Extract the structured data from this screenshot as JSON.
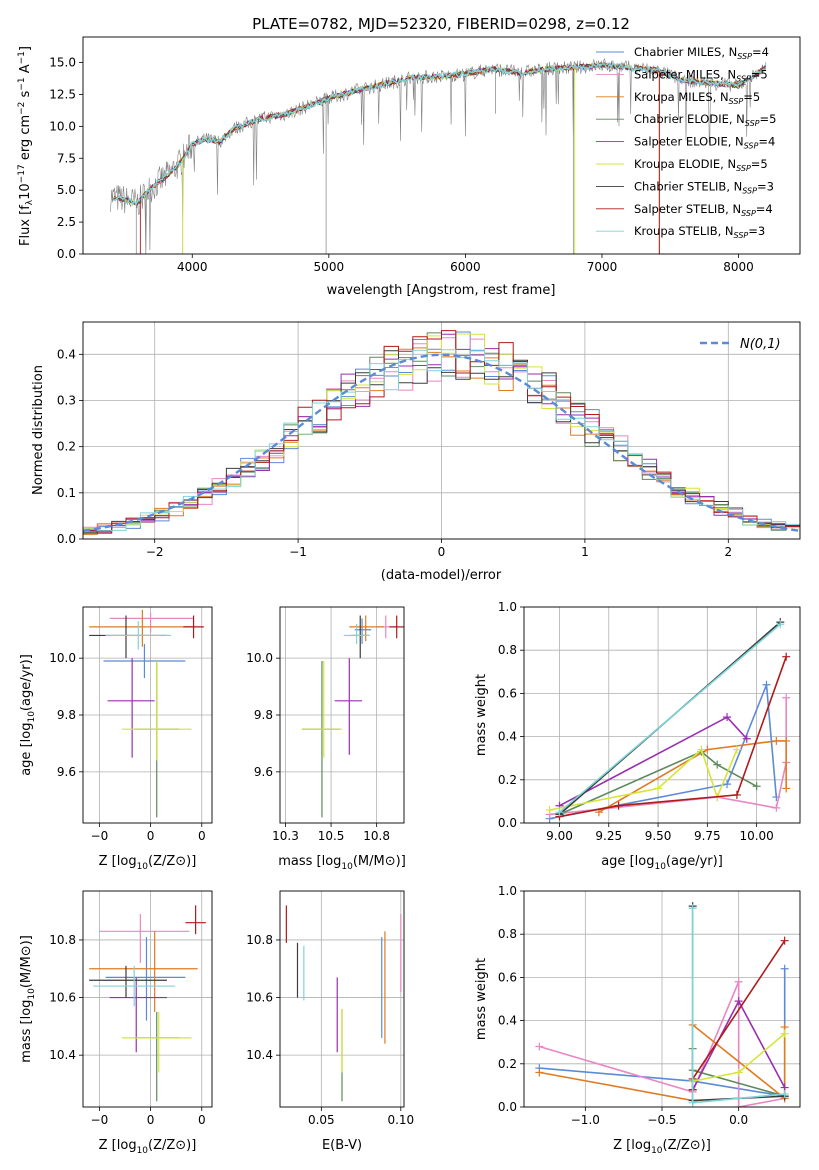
{
  "figure_title": "PLATE=0782, MJD=52320, FIBERID=0298, z=0.12",
  "colors": {
    "Chabrier MILES": "#5b8bd8",
    "Salpeter MILES": "#e887c4",
    "Kroupa MILES": "#e07b22",
    "Chabrier ELODIE": "#5e8a5e",
    "Salpeter ELODIE": "#9a2eb0",
    "Kroupa ELODIE": "#d4e63a",
    "Chabrier STELIB": "#3c3c3c",
    "Salpeter STELIB": "#b01a1a",
    "Kroupa STELIB": "#7dd4d8",
    "normal_curve": "#5b8bd8",
    "grid": "#b0b0b0"
  },
  "chart_data": [
    {
      "id": "spectrum",
      "type": "line",
      "title": "PLATE=0782, MJD=52320, FIBERID=0298, z=0.12",
      "xlabel": "wavelength [Angstrom, rest frame]",
      "ylabel": "Flux [f_λ10^-17 erg cm^-2 s^-1 A^-1]",
      "xlim": [
        3200,
        8450
      ],
      "ylim": [
        0,
        17
      ],
      "grid": false,
      "legend_position": "right",
      "xticks": [
        4000,
        5000,
        6000,
        7000,
        8000
      ],
      "yticks": [
        0.0,
        2.5,
        5.0,
        7.5,
        10.0,
        12.5,
        15.0
      ],
      "data_curve_shape": {
        "x": [
          3400,
          3600,
          3700,
          3800,
          3900,
          4000,
          4100,
          4200,
          4300,
          4400,
          4500,
          4600,
          4700,
          4800,
          5000,
          5200,
          5400,
          5600,
          5800,
          6000,
          6200,
          6400,
          6600,
          6800,
          7000,
          7200,
          7400,
          7600,
          7800,
          8000,
          8200
        ],
        "y": [
          4.5,
          4.0,
          5.2,
          6.0,
          7.0,
          8.6,
          9.0,
          8.8,
          9.8,
          10.2,
          10.6,
          10.8,
          11.0,
          11.4,
          12.2,
          12.8,
          13.3,
          13.8,
          13.9,
          14.1,
          14.5,
          14.2,
          14.5,
          14.6,
          14.8,
          14.6,
          14.4,
          13.6,
          13.4,
          13.2,
          14.6
        ]
      },
      "series": [
        {
          "name": "Chabrier MILES, N_SSP=4"
        },
        {
          "name": "Salpeter MILES, N_SSP=5"
        },
        {
          "name": "Kroupa MILES, N_SSP=5"
        },
        {
          "name": "Chabrier ELODIE, N_SSP=5"
        },
        {
          "name": "Salpeter ELODIE, N_SSP=4"
        },
        {
          "name": "Kroupa ELODIE, N_SSP=5"
        },
        {
          "name": "Chabrier STELIB, N_SSP=3"
        },
        {
          "name": "Salpeter STELIB, N_SSP=4"
        },
        {
          "name": "Kroupa STELIB, N_SSP=3"
        }
      ]
    },
    {
      "id": "residuals",
      "type": "histogram",
      "xlabel": "(data-model)/error",
      "ylabel": "Normed distribution",
      "xlim": [
        -2.5,
        2.5
      ],
      "ylim": [
        0,
        0.47
      ],
      "grid": true,
      "legend_position": "top-right",
      "xticks": [
        -2,
        -1,
        0,
        1,
        2
      ],
      "yticks": [
        0.0,
        0.1,
        0.2,
        0.3,
        0.4
      ],
      "bin_width": 0.1,
      "curve_label": "N(0,1)",
      "curve_mu": 0,
      "curve_sigma": 1
    },
    {
      "id": "age_vs_Z",
      "type": "scatter",
      "xlabel": "Z [log10(Z/Z⊙)]",
      "ylabel": "age [log10(age/yr)]",
      "xlim": [
        -0.33,
        0.3
      ],
      "ylim": [
        9.42,
        10.18
      ],
      "grid": true,
      "xticks": [
        -0.25,
        0.0,
        0.25
      ],
      "yticks": [
        9.6,
        9.8,
        10.0
      ],
      "points": [
        {
          "s": "Chabrier MILES",
          "x": -0.03,
          "y": 9.99,
          "xlo": -0.23,
          "xhi": 0.17,
          "ylo": 9.93,
          "yhi": 10.05
        },
        {
          "s": "Salpeter MILES",
          "x": 0.0,
          "y": 10.14,
          "xlo": -0.2,
          "xhi": 0.21,
          "ylo": 10.09,
          "yhi": 10.16
        },
        {
          "s": "Kroupa MILES",
          "x": -0.04,
          "y": 10.11,
          "xlo": -0.3,
          "xhi": 0.21,
          "ylo": 10.04,
          "yhi": 10.17
        },
        {
          "s": "Chabrier ELODIE",
          "x": 0.03,
          "y": 9.75,
          "xlo": -0.08,
          "xhi": 0.14,
          "ylo": 9.44,
          "yhi": 9.99
        },
        {
          "s": "Salpeter ELODIE",
          "x": -0.09,
          "y": 9.85,
          "xlo": -0.21,
          "xhi": 0.02,
          "ylo": 9.65,
          "yhi": 10.0
        },
        {
          "s": "Kroupa ELODIE",
          "x": 0.03,
          "y": 9.75,
          "xlo": -0.14,
          "xhi": 0.2,
          "ylo": 9.64,
          "yhi": 9.99
        },
        {
          "s": "Chabrier STELIB",
          "x": -0.12,
          "y": 10.08,
          "xlo": -0.3,
          "xhi": 0.08,
          "ylo": 10.0,
          "yhi": 10.15
        },
        {
          "s": "Salpeter STELIB",
          "x": 0.21,
          "y": 10.11,
          "xlo": 0.16,
          "xhi": 0.26,
          "ylo": 10.07,
          "yhi": 10.15
        },
        {
          "s": "Kroupa STELIB",
          "x": -0.06,
          "y": 10.08,
          "xlo": -0.22,
          "xhi": 0.1,
          "ylo": 10.03,
          "yhi": 10.13
        }
      ]
    },
    {
      "id": "age_vs_mass",
      "type": "scatter",
      "xlabel": "mass [log10(M/M⊙)]",
      "ylabel": "",
      "xlim": [
        10.22,
        10.9
      ],
      "ylim": [
        9.42,
        10.18
      ],
      "grid": true,
      "xticks": [
        10.25,
        10.5,
        10.75
      ],
      "yticks": [
        9.6,
        9.8,
        10.0
      ],
      "points": [
        {
          "s": "Chabrier MILES",
          "x": 10.67,
          "y": 10.1,
          "xlo": 10.63,
          "xhi": 10.72,
          "ylo": 10.05,
          "yhi": 10.14
        },
        {
          "s": "Salpeter MILES",
          "x": 10.8,
          "y": 10.11,
          "xlo": 10.75,
          "xhi": 10.86,
          "ylo": 10.07,
          "yhi": 10.15
        },
        {
          "s": "Kroupa MILES",
          "x": 10.69,
          "y": 10.11,
          "xlo": 10.6,
          "xhi": 10.79,
          "ylo": 10.06,
          "yhi": 10.15
        },
        {
          "s": "Chabrier ELODIE",
          "x": 10.45,
          "y": 9.75,
          "xlo": 10.34,
          "xhi": 10.55,
          "ylo": 9.44,
          "yhi": 9.99
        },
        {
          "s": "Salpeter ELODIE",
          "x": 10.6,
          "y": 9.85,
          "xlo": 10.52,
          "xhi": 10.67,
          "ylo": 9.66,
          "yhi": 10.0
        },
        {
          "s": "Kroupa ELODIE",
          "x": 10.46,
          "y": 9.75,
          "xlo": 10.34,
          "xhi": 10.56,
          "ylo": 9.65,
          "yhi": 9.99
        },
        {
          "s": "Chabrier STELIB",
          "x": 10.66,
          "y": 10.08,
          "xlo": 10.61,
          "xhi": 10.71,
          "ylo": 10.0,
          "yhi": 10.15
        },
        {
          "s": "Salpeter STELIB",
          "x": 10.86,
          "y": 10.11,
          "xlo": 10.82,
          "xhi": 10.9,
          "ylo": 10.07,
          "yhi": 10.15
        },
        {
          "s": "Kroupa STELIB",
          "x": 10.64,
          "y": 10.08,
          "xlo": 10.57,
          "xhi": 10.71,
          "ylo": 10.05,
          "yhi": 10.12
        }
      ]
    },
    {
      "id": "weight_vs_age",
      "type": "line",
      "xlabel": "age [log10(age/yr)]",
      "ylabel": "mass weight",
      "xlim": [
        8.82,
        10.22
      ],
      "ylim": [
        0.0,
        1.0
      ],
      "grid": true,
      "xticks": [
        9.0,
        9.25,
        9.5,
        9.75,
        10.0
      ],
      "yticks": [
        0.0,
        0.2,
        0.4,
        0.6,
        0.8,
        1.0
      ],
      "series": [
        {
          "s": "Chabrier MILES",
          "x": [
            8.95,
            9.85,
            10.05,
            10.1
          ],
          "y": [
            0.02,
            0.18,
            0.64,
            0.12
          ]
        },
        {
          "s": "Salpeter MILES",
          "x": [
            8.95,
            9.8,
            10.1,
            10.15,
            10.15
          ],
          "y": [
            0.04,
            0.12,
            0.07,
            0.28,
            0.58
          ]
        },
        {
          "s": "Kroupa MILES",
          "x": [
            9.2,
            9.75,
            10.1,
            10.15,
            10.15
          ],
          "y": [
            0.05,
            0.34,
            0.38,
            0.38,
            0.16
          ]
        },
        {
          "s": "Chabrier ELODIE",
          "x": [
            9.0,
            9.72,
            9.8,
            10.0
          ],
          "y": [
            0.04,
            0.33,
            0.27,
            0.17
          ]
        },
        {
          "s": "Salpeter ELODIE",
          "x": [
            9.0,
            9.85,
            9.95
          ],
          "y": [
            0.08,
            0.49,
            0.39
          ]
        },
        {
          "s": "Kroupa ELODIE",
          "x": [
            8.95,
            9.5,
            9.72,
            9.8,
            9.9
          ],
          "y": [
            0.06,
            0.16,
            0.34,
            0.12,
            0.34
          ]
        },
        {
          "s": "Chabrier STELIB",
          "x": [
            9.0,
            10.12
          ],
          "y": [
            0.04,
            0.93
          ]
        },
        {
          "s": "Salpeter STELIB",
          "x": [
            9.0,
            9.3,
            9.9,
            10.15
          ],
          "y": [
            0.03,
            0.08,
            0.13,
            0.77
          ]
        },
        {
          "s": "Kroupa STELIB",
          "x": [
            9.0,
            10.12
          ],
          "y": [
            0.05,
            0.92
          ]
        }
      ]
    },
    {
      "id": "mass_vs_Z",
      "type": "scatter",
      "xlabel": "Z [log10(Z/Z⊙)]",
      "ylabel": "mass [log10(M/M⊙)]",
      "xlim": [
        -0.33,
        0.3
      ],
      "ylim": [
        10.22,
        10.97
      ],
      "grid": true,
      "xticks": [
        -0.25,
        0.0,
        0.25
      ],
      "yticks": [
        10.4,
        10.6,
        10.8
      ],
      "points": [
        {
          "s": "Chabrier MILES",
          "x": -0.02,
          "y": 10.67,
          "xlo": -0.22,
          "xhi": 0.17,
          "ylo": 10.52,
          "yhi": 10.81
        },
        {
          "s": "Salpeter MILES",
          "x": -0.05,
          "y": 10.83,
          "xlo": -0.25,
          "xhi": 0.19,
          "ylo": 10.72,
          "yhi": 10.89
        },
        {
          "s": "Kroupa MILES",
          "x": 0.02,
          "y": 10.7,
          "xlo": -0.3,
          "xhi": 0.23,
          "ylo": 10.55,
          "yhi": 10.83
        },
        {
          "s": "Chabrier ELODIE",
          "x": 0.03,
          "y": 10.46,
          "xlo": -0.08,
          "xhi": 0.14,
          "ylo": 10.24,
          "yhi": 10.55
        },
        {
          "s": "Salpeter ELODIE",
          "x": -0.07,
          "y": 10.6,
          "xlo": -0.2,
          "xhi": 0.08,
          "ylo": 10.41,
          "yhi": 10.67
        },
        {
          "s": "Kroupa ELODIE",
          "x": 0.04,
          "y": 10.46,
          "xlo": -0.14,
          "xhi": 0.2,
          "ylo": 10.34,
          "yhi": 10.55
        },
        {
          "s": "Chabrier STELIB",
          "x": -0.12,
          "y": 10.66,
          "xlo": -0.3,
          "xhi": 0.08,
          "ylo": 10.6,
          "yhi": 10.71
        },
        {
          "s": "Salpeter STELIB",
          "x": 0.22,
          "y": 10.86,
          "xlo": 0.17,
          "xhi": 0.27,
          "ylo": 10.82,
          "yhi": 10.92
        },
        {
          "s": "Kroupa STELIB",
          "x": -0.08,
          "y": 10.64,
          "xlo": -0.28,
          "xhi": 0.12,
          "ylo": 10.57,
          "yhi": 10.71
        }
      ]
    },
    {
      "id": "mass_vs_ebv",
      "type": "scatter",
      "xlabel": "E(B-V)",
      "ylabel": "",
      "xlim": [
        0.024,
        0.102
      ],
      "ylim": [
        10.22,
        10.97
      ],
      "grid": true,
      "xticks": [
        0.05,
        0.1
      ],
      "yticks": [
        10.4,
        10.6,
        10.8
      ],
      "points": [
        {
          "s": "Chabrier MILES",
          "x": 0.088,
          "y": 10.64,
          "ylo": 10.46,
          "yhi": 10.81
        },
        {
          "s": "Salpeter MILES",
          "x": 0.1,
          "y": 10.75,
          "ylo": 10.62,
          "yhi": 10.89
        },
        {
          "s": "Kroupa MILES",
          "x": 0.09,
          "y": 10.64,
          "ylo": 10.44,
          "yhi": 10.83
        },
        {
          "s": "Chabrier ELODIE",
          "x": 0.063,
          "y": 10.4,
          "ylo": 10.24,
          "yhi": 10.56
        },
        {
          "s": "Salpeter ELODIE",
          "x": 0.06,
          "y": 10.54,
          "ylo": 10.41,
          "yhi": 10.67
        },
        {
          "s": "Kroupa ELODIE",
          "x": 0.063,
          "y": 10.44,
          "ylo": 10.34,
          "yhi": 10.56
        },
        {
          "s": "Chabrier STELIB",
          "x": 0.035,
          "y": 10.69,
          "ylo": 10.6,
          "yhi": 10.79
        },
        {
          "s": "Salpeter STELIB",
          "x": 0.028,
          "y": 10.85,
          "ylo": 10.79,
          "yhi": 10.92
        },
        {
          "s": "Kroupa STELIB",
          "x": 0.039,
          "y": 10.68,
          "ylo": 10.59,
          "yhi": 10.78
        }
      ]
    },
    {
      "id": "weight_vs_Z",
      "type": "line",
      "xlabel": "Z [log10(Z/Z⊙)]",
      "ylabel": "mass weight",
      "xlim": [
        -1.4,
        0.4
      ],
      "ylim": [
        0.0,
        1.0
      ],
      "grid": true,
      "xticks": [
        -1.0,
        -0.5,
        0.0
      ],
      "yticks": [
        0.0,
        0.2,
        0.4,
        0.6,
        0.8,
        1.0
      ],
      "series": [
        {
          "s": "Chabrier MILES",
          "x": [
            -1.3,
            -0.3,
            0.3,
            0.3
          ],
          "y": [
            0.18,
            0.12,
            0.05,
            0.64
          ]
        },
        {
          "s": "Salpeter MILES",
          "x": [
            -1.3,
            -0.3,
            0.0,
            0.0,
            0.3
          ],
          "y": [
            0.28,
            0.07,
            0.58,
            0.0,
            0.04
          ]
        },
        {
          "s": "Kroupa MILES",
          "x": [
            -1.3,
            -0.3,
            -0.3,
            0.3,
            0.3
          ],
          "y": [
            0.16,
            0.03,
            0.38,
            0.04,
            0.37
          ]
        },
        {
          "s": "Chabrier ELODIE",
          "x": [
            -0.3,
            -0.3,
            0.3
          ],
          "y": [
            0.27,
            0.17,
            0.05
          ]
        },
        {
          "s": "Salpeter ELODIE",
          "x": [
            -0.3,
            0.0,
            0.3
          ],
          "y": [
            0.08,
            0.49,
            0.09
          ]
        },
        {
          "s": "Kroupa ELODIE",
          "x": [
            -0.3,
            0.0,
            0.3,
            0.3
          ],
          "y": [
            0.12,
            0.16,
            0.34,
            0.34
          ]
        },
        {
          "s": "Chabrier STELIB",
          "x": [
            -0.3,
            -0.3,
            0.3
          ],
          "y": [
            0.93,
            0.03,
            0.05
          ]
        },
        {
          "s": "Salpeter STELIB",
          "x": [
            -0.3,
            -0.3,
            0.3
          ],
          "y": [
            0.08,
            0.13,
            0.77
          ]
        },
        {
          "s": "Kroupa STELIB",
          "x": [
            -0.3,
            -0.3,
            0.3
          ],
          "y": [
            0.92,
            0.02,
            0.06
          ]
        }
      ]
    }
  ]
}
